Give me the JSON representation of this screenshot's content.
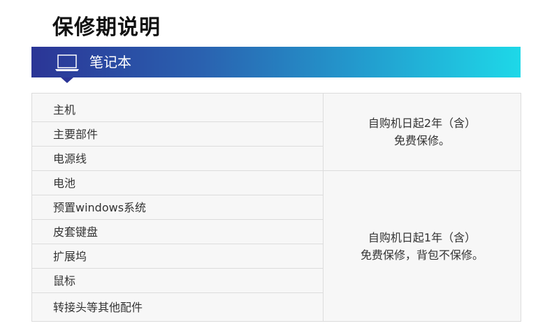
{
  "page_title": "保修期说明",
  "banner": {
    "label": "笔记本",
    "icon": "laptop-icon",
    "gradient_start": "#2b3596",
    "gradient_end": "#1ed8e8"
  },
  "table": {
    "items": [
      "主机",
      "主要部件",
      "电源线",
      "电池",
      "预置windows系统",
      "皮套键盘",
      "扩展坞",
      "鼠标",
      "转接头等其他配件"
    ],
    "groups": [
      {
        "line1": "自购机日起2年（含）",
        "line2": "免费保修。"
      },
      {
        "line1": "自购机日起1年（含）",
        "line2": "免费保修，背包不保修。"
      }
    ]
  }
}
